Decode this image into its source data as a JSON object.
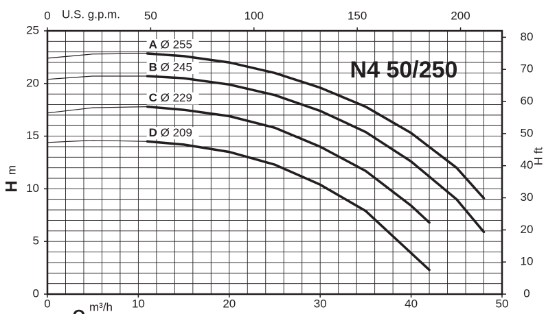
{
  "chart_data": {
    "type": "line",
    "title": "N4 50/250",
    "xlabel": "Q",
    "xunit": "m³/h",
    "ylabel": "H",
    "yunit": "m",
    "y2label": "H ft",
    "x2label": "U.S. g.p.m.",
    "xlim": [
      0,
      50
    ],
    "xticks": [
      0,
      10,
      20,
      30,
      40,
      50
    ],
    "x2lim": [
      0,
      220.1
    ],
    "x2ticks": [
      0,
      50,
      100,
      150,
      200
    ],
    "ylim": [
      0,
      25
    ],
    "yticks": [
      0,
      5,
      10,
      15,
      20,
      25
    ],
    "y2lim": [
      0,
      82
    ],
    "y2ticks": [
      0,
      10,
      20,
      30,
      40,
      50,
      60,
      70,
      80
    ],
    "grid": {
      "x": 2,
      "y": 1
    },
    "color": "#231f20",
    "series": [
      {
        "name": "A",
        "diameter": "Ø 255",
        "x": [
          11,
          15,
          20,
          25,
          30,
          35,
          40,
          45,
          48
        ],
        "values": [
          22.85,
          22.6,
          22.0,
          21.0,
          19.6,
          17.8,
          15.3,
          12.0,
          9.1
        ],
        "extension_x": [
          0,
          5,
          11
        ],
        "extension_values": [
          22.4,
          22.8,
          22.85
        ]
      },
      {
        "name": "B",
        "diameter": "Ø 245",
        "x": [
          11,
          15,
          20,
          25,
          30,
          35,
          40,
          45,
          48
        ],
        "values": [
          20.7,
          20.5,
          19.9,
          18.9,
          17.4,
          15.4,
          12.6,
          9.0,
          5.9
        ],
        "extension_x": [
          0,
          5,
          11
        ],
        "extension_values": [
          20.4,
          20.7,
          20.7
        ]
      },
      {
        "name": "C",
        "diameter": "Ø 229",
        "x": [
          11,
          15,
          20,
          25,
          30,
          35,
          40,
          42
        ],
        "values": [
          17.8,
          17.5,
          16.9,
          15.8,
          14.0,
          11.7,
          8.4,
          6.8
        ],
        "extension_x": [
          0,
          5,
          11
        ],
        "extension_values": [
          17.2,
          17.7,
          17.8
        ]
      },
      {
        "name": "D",
        "diameter": "Ø 209",
        "x": [
          11,
          15,
          20,
          25,
          30,
          35,
          40,
          42
        ],
        "values": [
          14.5,
          14.2,
          13.5,
          12.3,
          10.4,
          7.9,
          3.9,
          2.3
        ],
        "extension_x": [
          0,
          5,
          11
        ],
        "extension_values": [
          14.4,
          14.6,
          14.5
        ]
      }
    ]
  }
}
